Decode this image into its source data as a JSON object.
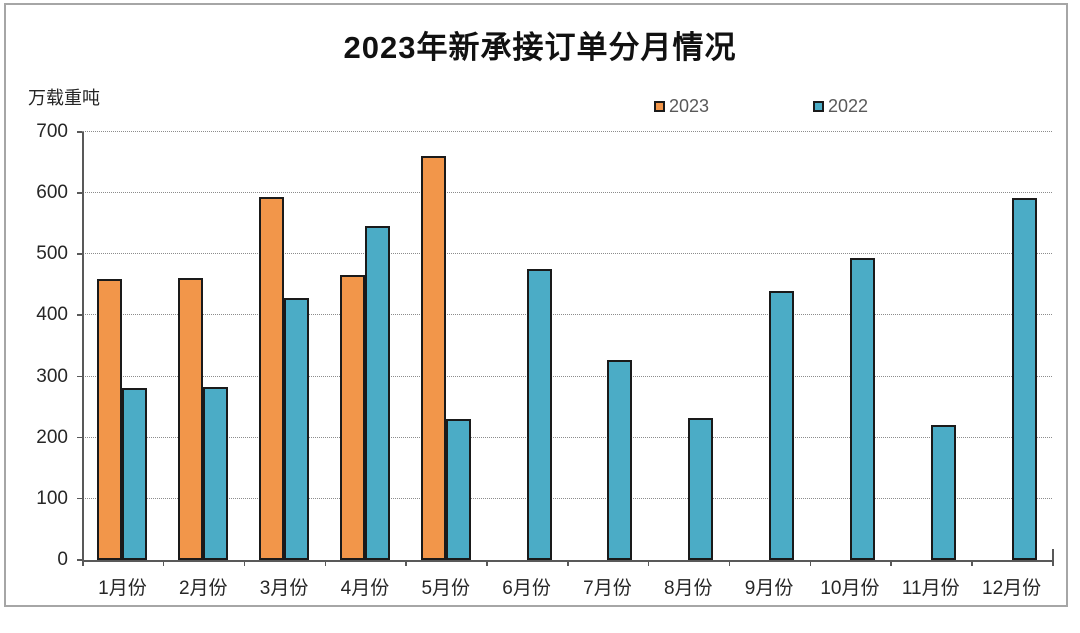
{
  "title": "2023年新承接订单分月情况",
  "y_axis": {
    "unit_label": "万载重吨",
    "ticks": [
      0,
      100,
      200,
      300,
      400,
      500,
      600,
      700
    ],
    "max": 700
  },
  "legend": {
    "items": [
      {
        "label": "2023",
        "color": "#f2964a"
      },
      {
        "label": "2022",
        "color": "#4bacc6"
      }
    ]
  },
  "colors": {
    "series_2023": "#f2964a",
    "series_2022": "#4bacc6",
    "bar_border": "#1a1a1a",
    "gridline": "#8c8c8c",
    "axis": "#595959",
    "text": "#262626",
    "frame_border": "#a6a6a6"
  },
  "chart_data": {
    "type": "bar",
    "title": "2023年新承接订单分月情况",
    "ylabel": "万载重吨",
    "ylim": [
      0,
      700
    ],
    "grid": "horizontal-dotted",
    "legend_position": "top",
    "categories": [
      "1月份",
      "2月份",
      "3月份",
      "4月份",
      "5月份",
      "6月份",
      "7月份",
      "8月份",
      "9月份",
      "10月份",
      "11月份",
      "12月份"
    ],
    "series": [
      {
        "name": "2023",
        "color": "#f2964a",
        "values": [
          460,
          462,
          593,
          466,
          660,
          null,
          null,
          null,
          null,
          null,
          null,
          null
        ]
      },
      {
        "name": "2022",
        "color": "#4bacc6",
        "values": [
          281,
          283,
          428,
          546,
          231,
          476,
          327,
          232,
          440,
          494,
          220,
          592
        ]
      }
    ]
  }
}
